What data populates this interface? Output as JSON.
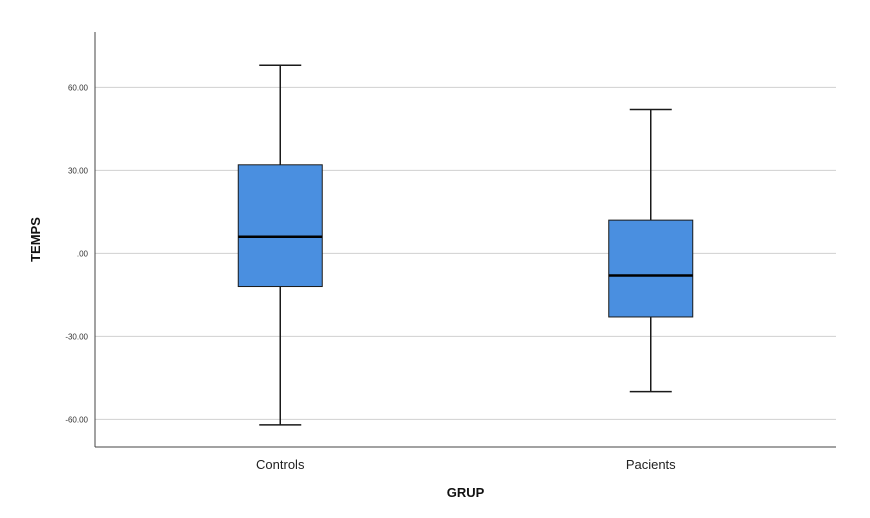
{
  "chart_data": {
    "type": "boxplot",
    "xlabel": "GRUP",
    "ylabel": "TEMPS",
    "ylim": [
      -70,
      80
    ],
    "yticks": [
      60,
      30,
      0,
      -30,
      -60
    ],
    "ytick_labels": [
      "60.00",
      "30.00",
      ".00",
      "-30.00",
      "-60.00"
    ],
    "grid": true,
    "categories": [
      "Controls",
      "Pacients"
    ],
    "boxes": [
      {
        "category": "Controls",
        "whisker_low": -62,
        "q1": -12,
        "median": 6,
        "q3": 32,
        "whisker_high": 68
      },
      {
        "category": "Pacients",
        "whisker_low": -50,
        "q1": -23,
        "median": -8,
        "q3": 12,
        "whisker_high": 52
      }
    ],
    "colors": {
      "box_fill": "#4a8fe0",
      "box_stroke": "#1a1a1a",
      "grid": "#d0d0d0",
      "axis": "#444444"
    }
  }
}
